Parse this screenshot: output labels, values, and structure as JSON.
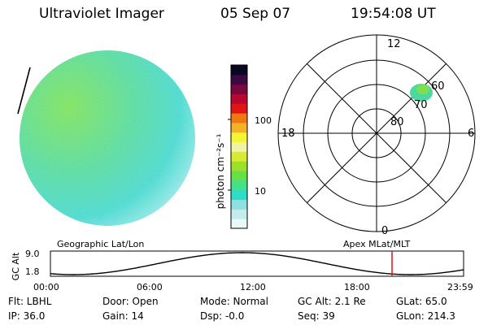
{
  "header": {
    "title": "Ultraviolet Imager",
    "date": "05 Sep 07",
    "time": "19:54:08 UT"
  },
  "colorbar": {
    "label": "photon cm⁻²s⁻¹",
    "ticks": [
      "100",
      "10"
    ]
  },
  "polar": {
    "mlt_labels": [
      "12",
      "18",
      "6",
      "0"
    ],
    "lat_labels": [
      "80",
      "70",
      "60"
    ]
  },
  "timeline": {
    "left_title": "Geographic Lat/Lon",
    "right_title": "Apex MLat/MLT",
    "yaxis_label": "GC Alt",
    "yticks": [
      "9.0",
      "1.8"
    ],
    "xticks": [
      "00:00",
      "06:00",
      "12:00",
      "18:00",
      "23:59"
    ]
  },
  "info": {
    "flt": "Flt: LBHL",
    "door": "Door: Open",
    "mode": "Mode: Normal",
    "gcalt": "GC Alt: 2.1 Re",
    "glat": "GLat:  65.0",
    "ip": "IP: 36.0",
    "gain": "Gain: 14",
    "dsp": "Dsp:   -0.0",
    "seq": "Seq: 39",
    "glon": "GLon: 214.3"
  },
  "colors": {
    "scale": [
      "#e8f7f7",
      "#c4ecec",
      "#8fe0e0",
      "#2fdcc8",
      "#44e08a",
      "#66e048",
      "#9ce02a",
      "#d6ec34",
      "#f0f4a0",
      "#f5f536",
      "#f5b226",
      "#f07814",
      "#e01414",
      "#b80830",
      "#780840",
      "#3a0a40",
      "#080820"
    ],
    "marker": "#e01010"
  }
}
